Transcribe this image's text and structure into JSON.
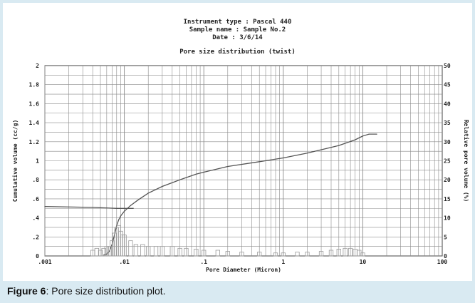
{
  "header": {
    "instrument_line": "Instrument type : Pascal 440",
    "sample_line": "Sample name : Sample No.2",
    "date_line": "Date : 3/6/14"
  },
  "caption": {
    "label": "Figure 6",
    "text": ": Pore size distribution plot."
  },
  "colors": {
    "background": "#d9eaf2",
    "panel": "#ffffff",
    "grid": "#8a8a8a",
    "line": "#555555",
    "bars": "#9a9a9a"
  },
  "chart_data": {
    "type": "line",
    "title": "Pore size distribution (twist)",
    "xlabel": "Pore Diameter (Micron)",
    "ylabel": "Cumulative volume (cc/g)",
    "y2label": "Relative pore volume (%)",
    "xscale": "log",
    "xlim": [
      0.001,
      100
    ],
    "ylim": [
      0,
      2
    ],
    "y2lim": [
      0,
      50
    ],
    "grid": true,
    "x_tick_labels": [
      ".001",
      ".01",
      ".1",
      "1",
      "10",
      "100"
    ],
    "x_tick_values": [
      0.001,
      0.01,
      0.1,
      1,
      10,
      100
    ],
    "y_tick_labels": [
      "0",
      ".2",
      ".4",
      ".6",
      ".8",
      "1",
      "1.2",
      "1.4",
      "1.6",
      "1.8",
      "2"
    ],
    "y_tick_values": [
      0,
      0.2,
      0.4,
      0.6,
      0.8,
      1.0,
      1.2,
      1.4,
      1.6,
      1.8,
      2.0
    ],
    "y2_tick_labels": [
      "0",
      "5",
      "10",
      "15",
      "20",
      "25",
      "30",
      "35",
      "40",
      "45",
      "50"
    ],
    "y2_tick_values": [
      0,
      5,
      10,
      15,
      20,
      25,
      30,
      35,
      40,
      45,
      50
    ],
    "series": [
      {
        "axis": "left",
        "kind": "line",
        "points": [
          [
            0.0055,
            0.01
          ],
          [
            0.006,
            0.02
          ],
          [
            0.0065,
            0.05
          ],
          [
            0.007,
            0.12
          ],
          [
            0.0075,
            0.22
          ],
          [
            0.008,
            0.32
          ],
          [
            0.0085,
            0.38
          ],
          [
            0.009,
            0.42
          ],
          [
            0.01,
            0.47
          ],
          [
            0.012,
            0.53
          ],
          [
            0.015,
            0.59
          ],
          [
            0.02,
            0.66
          ],
          [
            0.03,
            0.73
          ],
          [
            0.05,
            0.8
          ],
          [
            0.08,
            0.86
          ],
          [
            0.1,
            0.88
          ],
          [
            0.2,
            0.94
          ],
          [
            0.5,
            0.99
          ],
          [
            1,
            1.03
          ],
          [
            2,
            1.08
          ],
          [
            5,
            1.16
          ],
          [
            8,
            1.22
          ],
          [
            10,
            1.26
          ],
          [
            12,
            1.28
          ],
          [
            15,
            1.28
          ]
        ]
      },
      {
        "axis": "left",
        "kind": "line",
        "points": [
          [
            0.001,
            0.52
          ],
          [
            0.004,
            0.51
          ],
          [
            0.008,
            0.5
          ],
          [
            0.013,
            0.5
          ]
        ]
      },
      {
        "axis": "right",
        "kind": "bar",
        "points": [
          [
            0.004,
            1.5
          ],
          [
            0.0045,
            2.0
          ],
          [
            0.005,
            1.5
          ],
          [
            0.0055,
            2.0
          ],
          [
            0.006,
            2.5
          ],
          [
            0.0065,
            2.5
          ],
          [
            0.007,
            4.0
          ],
          [
            0.0075,
            6.0
          ],
          [
            0.008,
            7.5
          ],
          [
            0.0085,
            8.0
          ],
          [
            0.009,
            6.5
          ],
          [
            0.0095,
            5.5
          ],
          [
            0.01,
            5.5
          ],
          [
            0.012,
            4.0
          ],
          [
            0.014,
            3.0
          ],
          [
            0.017,
            3.0
          ],
          [
            0.02,
            2.5
          ],
          [
            0.025,
            2.5
          ],
          [
            0.03,
            2.5
          ],
          [
            0.04,
            2.5
          ],
          [
            0.05,
            2.0
          ],
          [
            0.06,
            2.0
          ],
          [
            0.08,
            1.8
          ],
          [
            0.1,
            1.5
          ],
          [
            0.15,
            1.5
          ],
          [
            0.2,
            1.2
          ],
          [
            0.3,
            1.0
          ],
          [
            0.5,
            1.0
          ],
          [
            0.8,
            0.8
          ],
          [
            1,
            0.8
          ],
          [
            1.5,
            1.0
          ],
          [
            2,
            1.0
          ],
          [
            3,
            1.2
          ],
          [
            4,
            1.5
          ],
          [
            5,
            1.8
          ],
          [
            6,
            2.0
          ],
          [
            7,
            2.0
          ],
          [
            8,
            1.8
          ],
          [
            9,
            1.5
          ],
          [
            10,
            0.8
          ]
        ]
      }
    ]
  }
}
